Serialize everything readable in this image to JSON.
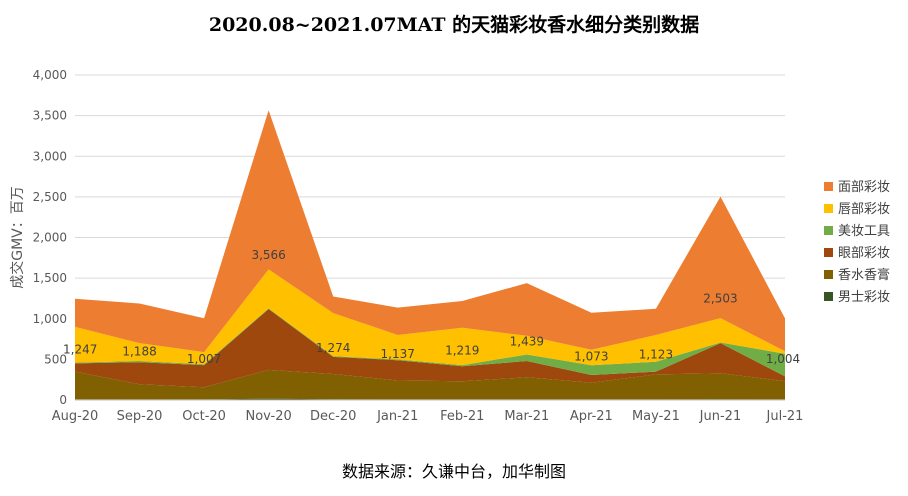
{
  "page": {
    "title": "2020.08~2021.07MAT 的天猫彩妆香水细分类别数据",
    "source": "数据来源：久谦中台，加华制图"
  },
  "chart_data": {
    "type": "area",
    "stacked": true,
    "title": "2020.08~2021.07MAT 的天猫彩妆香水细分类别数据",
    "xlabel": "",
    "ylabel": "成交GMV：百万",
    "ylim": [
      0,
      4000
    ],
    "yticks": [
      0,
      500,
      1000,
      1500,
      2000,
      2500,
      3000,
      3500,
      4000
    ],
    "ytick_labels": [
      "0",
      "500",
      "1,000",
      "1,500",
      "2,000",
      "2,500",
      "3,000",
      "3,500",
      "4,000"
    ],
    "grid": true,
    "legend_position": "right",
    "categories": [
      "Aug-20",
      "Sep-20",
      "Oct-20",
      "Nov-20",
      "Dec-20",
      "Jan-21",
      "Feb-21",
      "Mar-21",
      "Apr-21",
      "May-21",
      "Jun-21",
      "Jul-21"
    ],
    "totals": [
      1247,
      1188,
      1007,
      3566,
      1274,
      1137,
      1219,
      1439,
      1073,
      1123,
      2503,
      1004
    ],
    "total_labels": [
      "1,247",
      "1,188",
      "1,007",
      "3,566",
      "1,274",
      "1,137",
      "1,219",
      "1,439",
      "1,073",
      "1,123",
      "2,503",
      "1,004"
    ],
    "series": [
      {
        "name": "男士彩妆",
        "color": "#375623",
        "values": [
          10,
          8,
          8,
          15,
          10,
          8,
          8,
          8,
          8,
          8,
          10,
          8
        ]
      },
      {
        "name": "香水香膏",
        "color": "#806000",
        "values": [
          340,
          185,
          150,
          355,
          310,
          232,
          222,
          272,
          205,
          307,
          320,
          222
        ]
      },
      {
        "name": "眼部彩妆",
        "color": "#9E480E",
        "values": [
          100,
          272,
          272,
          750,
          210,
          250,
          185,
          200,
          95,
          35,
          370,
          60
        ]
      },
      {
        "name": "美妆工具",
        "color": "#70AD47",
        "values": [
          10,
          15,
          10,
          8,
          10,
          10,
          15,
          80,
          120,
          120,
          8,
          280
        ]
      },
      {
        "name": "唇部彩妆",
        "color": "#FFC000",
        "values": [
          440,
          220,
          150,
          480,
          530,
          300,
          460,
          230,
          190,
          330,
          300,
          30
        ]
      },
      {
        "name": "面部彩妆",
        "color": "#ED7D31",
        "values": [
          347,
          488,
          417,
          1958,
          204,
          337,
          329,
          649,
          455,
          323,
          1495,
          404
        ]
      }
    ],
    "legend_order": [
      "面部彩妆",
      "唇部彩妆",
      "美妆工具",
      "眼部彩妆",
      "香水香膏",
      "男士彩妆"
    ]
  }
}
